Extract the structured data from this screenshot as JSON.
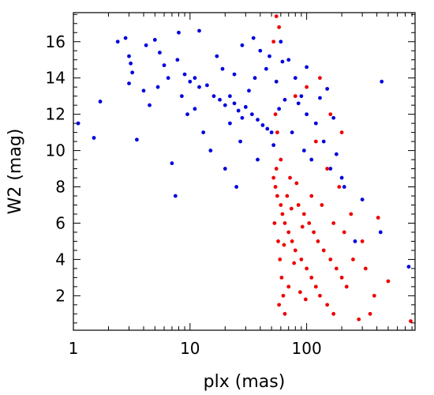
{
  "chart_data": {
    "type": "scatter",
    "title": "",
    "xlabel": "plx (mas)",
    "ylabel": "W2 (mag)",
    "x_scale": "log",
    "xlim": [
      1,
      850
    ],
    "ylim": [
      0.1,
      17.6
    ],
    "x_ticks": [
      {
        "value": 1,
        "label": "1"
      },
      {
        "value": 10,
        "label": "10"
      },
      {
        "value": 100,
        "label": "100"
      }
    ],
    "y_ticks": [
      {
        "value": 2,
        "label": "2"
      },
      {
        "value": 4,
        "label": "4"
      },
      {
        "value": 6,
        "label": "6"
      },
      {
        "value": 8,
        "label": "8"
      },
      {
        "value": 10,
        "label": "10"
      },
      {
        "value": 12,
        "label": "12"
      },
      {
        "value": 14,
        "label": "14"
      },
      {
        "value": 16,
        "label": "16"
      }
    ],
    "grid": false,
    "legend": "none",
    "colors": {
      "blue": "#0000dd",
      "red": "#ee0000"
    },
    "series": [
      {
        "color": "blue",
        "points": [
          [
            1.1,
            11.5
          ],
          [
            1.5,
            10.7
          ],
          [
            1.7,
            12.7
          ],
          [
            2.4,
            16.0
          ],
          [
            2.8,
            16.2
          ],
          [
            3.0,
            15.2
          ],
          [
            3.1,
            14.8
          ],
          [
            3.2,
            14.3
          ],
          [
            3.5,
            10.6
          ],
          [
            4.5,
            12.5
          ],
          [
            4.0,
            13.3
          ],
          [
            4.2,
            15.8
          ],
          [
            5.3,
            13.5
          ],
          [
            5.5,
            15.4
          ],
          [
            6.0,
            14.7
          ],
          [
            7.0,
            9.3
          ],
          [
            7.5,
            7.5
          ],
          [
            8.0,
            16.5
          ],
          [
            9.0,
            14.2
          ],
          [
            10.0,
            13.8
          ],
          [
            11.0,
            14.0
          ],
          [
            12.0,
            13.5
          ],
          [
            14.0,
            13.6
          ],
          [
            16.0,
            13.0
          ],
          [
            18.0,
            12.8
          ],
          [
            20.0,
            12.5
          ],
          [
            22.0,
            13.0
          ],
          [
            24.0,
            12.6
          ],
          [
            26.0,
            12.2
          ],
          [
            28.0,
            11.8
          ],
          [
            30.0,
            12.4
          ],
          [
            34.0,
            12.0
          ],
          [
            38.0,
            11.7
          ],
          [
            42.0,
            11.4
          ],
          [
            46.0,
            11.2
          ],
          [
            50.0,
            11.0
          ],
          [
            25.0,
            8.0
          ],
          [
            20.0,
            9.0
          ],
          [
            15.0,
            10.0
          ],
          [
            40.0,
            15.5
          ],
          [
            60.0,
            16.0
          ],
          [
            70.0,
            15.0
          ],
          [
            80.0,
            14.0
          ],
          [
            90.0,
            13.0
          ],
          [
            100.0,
            12.0
          ],
          [
            120.0,
            11.5
          ],
          [
            140.0,
            10.5
          ],
          [
            160.0,
            9.0
          ],
          [
            200.0,
            8.5
          ],
          [
            300.0,
            7.3
          ],
          [
            440.0,
            13.8
          ],
          [
            750.0,
            3.6
          ],
          [
            430.0,
            5.5
          ],
          [
            260.0,
            5.0
          ],
          [
            12.0,
            16.6
          ],
          [
            35.0,
            16.2
          ],
          [
            100.0,
            14.6
          ],
          [
            150.0,
            13.4
          ],
          [
            17.0,
            15.2
          ],
          [
            9.5,
            12.0
          ],
          [
            13.0,
            11.0
          ],
          [
            28.0,
            15.8
          ],
          [
            55.0,
            13.8
          ],
          [
            65.0,
            12.8
          ],
          [
            45.0,
            14.5
          ],
          [
            75.0,
            11.0
          ],
          [
            110.0,
            9.5
          ],
          [
            95.0,
            10.0
          ],
          [
            38.0,
            9.5
          ],
          [
            27.0,
            10.5
          ],
          [
            8.5,
            13.0
          ],
          [
            6.5,
            14.0
          ],
          [
            19.0,
            14.5
          ],
          [
            32.0,
            13.3
          ],
          [
            58.0,
            12.3
          ],
          [
            85.0,
            12.6
          ],
          [
            130.0,
            12.9
          ],
          [
            170.0,
            11.8
          ],
          [
            48.0,
            15.2
          ],
          [
            22.0,
            11.5
          ],
          [
            11.0,
            12.3
          ],
          [
            7.8,
            15.0
          ],
          [
            5.0,
            16.1
          ],
          [
            3.0,
            13.7
          ],
          [
            210.0,
            8.0
          ],
          [
            180.0,
            9.8
          ],
          [
            62.0,
            14.9
          ],
          [
            52.0,
            10.3
          ],
          [
            36.0,
            14.0
          ],
          [
            24.0,
            14.2
          ]
        ]
      },
      {
        "color": "red",
        "points": [
          [
            55.0,
            17.4
          ],
          [
            58.0,
            16.8
          ],
          [
            52.0,
            16.0
          ],
          [
            60.0,
            9.5
          ],
          [
            55.0,
            9.0
          ],
          [
            52.0,
            8.5
          ],
          [
            54.0,
            8.0
          ],
          [
            56.0,
            7.5
          ],
          [
            60.0,
            7.0
          ],
          [
            62.0,
            6.5
          ],
          [
            65.0,
            6.0
          ],
          [
            70.0,
            5.5
          ],
          [
            75.0,
            5.0
          ],
          [
            80.0,
            4.5
          ],
          [
            90.0,
            4.0
          ],
          [
            100.0,
            3.5
          ],
          [
            110.0,
            3.0
          ],
          [
            120.0,
            2.5
          ],
          [
            130.0,
            2.0
          ],
          [
            150.0,
            1.5
          ],
          [
            170.0,
            1.0
          ],
          [
            200.0,
            3.0
          ],
          [
            250.0,
            4.0
          ],
          [
            300.0,
            5.0
          ],
          [
            350.0,
            1.0
          ],
          [
            280.0,
            0.7
          ],
          [
            780.0,
            0.6
          ],
          [
            53.0,
            6.0
          ],
          [
            57.0,
            5.0
          ],
          [
            59.0,
            4.0
          ],
          [
            61.0,
            3.0
          ],
          [
            63.0,
            2.0
          ],
          [
            65.0,
            1.0
          ],
          [
            68.0,
            7.5
          ],
          [
            72.0,
            8.5
          ],
          [
            85.0,
            7.0
          ],
          [
            95.0,
            6.5
          ],
          [
            105.0,
            6.0
          ],
          [
            115.0,
            5.5
          ],
          [
            125.0,
            5.0
          ],
          [
            140.0,
            4.5
          ],
          [
            160.0,
            4.0
          ],
          [
            180.0,
            3.5
          ],
          [
            220.0,
            2.5
          ],
          [
            240.0,
            6.5
          ],
          [
            190.0,
            8.0
          ],
          [
            150.0,
            9.0
          ],
          [
            120.0,
            10.5
          ],
          [
            160.0,
            12.0
          ],
          [
            200.0,
            11.0
          ],
          [
            130.0,
            14.0
          ],
          [
            80.0,
            13.0
          ],
          [
            100.0,
            13.5
          ],
          [
            54.0,
            12.0
          ],
          [
            56.0,
            11.0
          ],
          [
            320.0,
            3.5
          ],
          [
            380.0,
            2.0
          ],
          [
            500.0,
            2.8
          ],
          [
            410.0,
            6.3
          ],
          [
            58.0,
            1.5
          ],
          [
            70.0,
            2.5
          ],
          [
            78.0,
            3.8
          ],
          [
            88.0,
            2.2
          ],
          [
            98.0,
            1.8
          ],
          [
            92.0,
            5.8
          ],
          [
            64.0,
            4.8
          ],
          [
            74.0,
            6.8
          ],
          [
            82.0,
            8.2
          ],
          [
            110.0,
            7.5
          ],
          [
            135.0,
            7.0
          ],
          [
            210.0,
            5.5
          ],
          [
            170.0,
            6.0
          ]
        ]
      }
    ]
  }
}
